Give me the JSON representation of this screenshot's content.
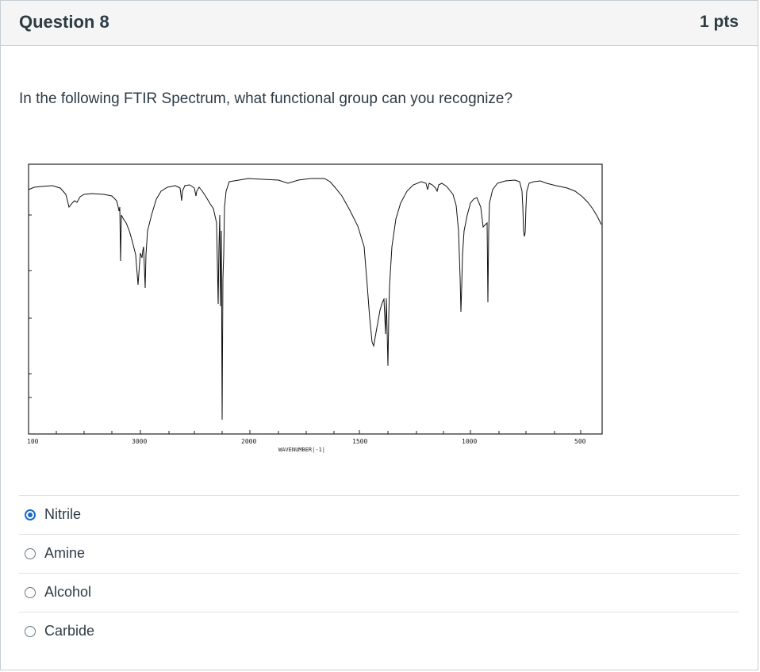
{
  "question": {
    "title": "Question 8",
    "points": "1 pts",
    "text": "In the following FTIR Spectrum, what functional group can you recognize?"
  },
  "figure": {
    "tick_labels": [
      "100",
      "3000",
      "2000",
      "1500",
      "1000",
      "500"
    ],
    "xlabel": "WAVENUMBER|-1|"
  },
  "answers": [
    {
      "label": "Nitrile",
      "selected": true
    },
    {
      "label": "Amine",
      "selected": false
    },
    {
      "label": "Alcohol",
      "selected": false
    },
    {
      "label": "Carbide",
      "selected": false
    }
  ],
  "colors": {
    "accent": "#1a6ac6",
    "header_bg": "#f5f5f5",
    "text": "#2d3b45"
  }
}
